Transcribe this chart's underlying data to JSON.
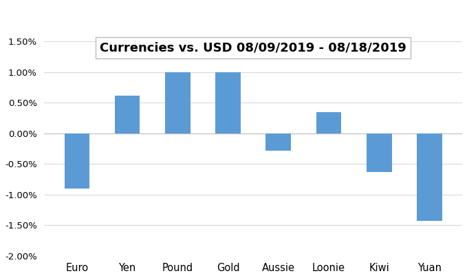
{
  "title": "Currencies vs. USD 08/09/2019 - 08/18/2019",
  "categories": [
    "Euro",
    "Yen",
    "Pound",
    "Gold",
    "Aussie",
    "Loonie",
    "Kiwi",
    "Yuan"
  ],
  "values": [
    -0.009,
    0.0062,
    0.01,
    0.01,
    -0.0028,
    0.0035,
    -0.0063,
    -0.0143
  ],
  "bar_color": "#5B9BD5",
  "ylim": [
    -0.02,
    0.015
  ],
  "yticks": [
    -0.02,
    -0.015,
    -0.01,
    -0.005,
    0.0,
    0.005,
    0.01,
    0.015
  ],
  "ytick_labels": [
    "-2.00%",
    "-1.50%",
    "-1.00%",
    "-0.50%",
    "0.00%",
    "0.50%",
    "1.00%",
    "1.50%"
  ],
  "background_color": "#FFFFFF",
  "grid_color": "#D9D9D9",
  "title_fontsize": 13,
  "title_box_facecolor": "#FFFFFF",
  "title_box_edgecolor": "#BBBBBB",
  "bar_width": 0.5
}
